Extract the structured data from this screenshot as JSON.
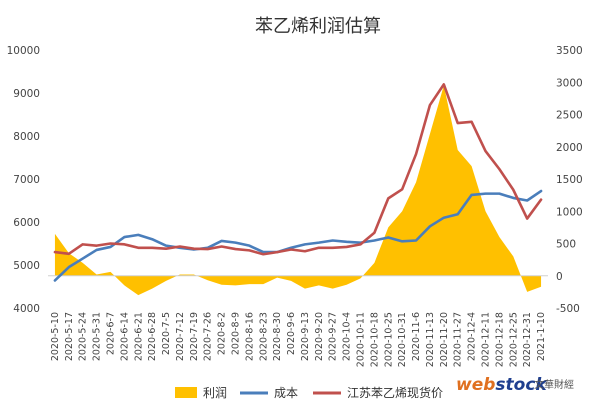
{
  "chart_data": {
    "type": "line",
    "title": "苯乙烯利润估算",
    "x": [
      "2020-5-10",
      "2020-5-17",
      "2020-5-24",
      "2020-5-31",
      "2020-6-7",
      "2020-6-14",
      "2020-6-21",
      "2020-6-28",
      "2020-7-5",
      "2020-7-12",
      "2020-7-19",
      "2020-7-26",
      "2020-8-2",
      "2020-8-9",
      "2020-8-16",
      "2020-8-23",
      "2020-8-30",
      "2020-9-6",
      "2020-9-13",
      "2020-9-20",
      "2020-9-27",
      "2020-10-4",
      "2020-10-11",
      "2020-10-18",
      "2020-10-25",
      "2020-10-31",
      "2020-11-6",
      "2020-11-13",
      "2020-11-20",
      "2020-11-27",
      "2020-12-4",
      "2020-12-11",
      "2020-12-18",
      "2020-12-25",
      "2020-12-31",
      "2021-1-10"
    ],
    "y_left_ticks": [
      "4000",
      "5000",
      "6000",
      "7000",
      "8000",
      "9000",
      "10000"
    ],
    "y_right_ticks": [
      "-500",
      "0",
      "500",
      "1000",
      "1500",
      "2000",
      "2500",
      "3000",
      "3500"
    ],
    "ylim_left": [
      4000,
      10000
    ],
    "ylim_right": [
      -500,
      3500
    ],
    "grid": false,
    "legend_position": "bottom",
    "series": [
      {
        "name": "利润",
        "chart_type": "area",
        "axis": "right",
        "color": "#FFC000",
        "values": [
          650,
          350,
          200,
          20,
          60,
          -150,
          -300,
          -200,
          -80,
          20,
          20,
          -70,
          -140,
          -150,
          -130,
          -130,
          -30,
          -80,
          -200,
          -150,
          -200,
          -140,
          -40,
          200,
          750,
          1000,
          1450,
          2200,
          2950,
          1950,
          1700,
          1000,
          600,
          300,
          -250,
          -170
        ]
      },
      {
        "name": "成本",
        "chart_type": "line",
        "axis": "left",
        "color": "#4A7EBB",
        "values": [
          4640,
          4950,
          5150,
          5350,
          5420,
          5650,
          5700,
          5600,
          5450,
          5400,
          5360,
          5400,
          5560,
          5520,
          5450,
          5300,
          5300,
          5400,
          5480,
          5520,
          5570,
          5540,
          5520,
          5570,
          5640,
          5550,
          5570,
          5900,
          6100,
          6180,
          6630,
          6660,
          6660,
          6560,
          6500,
          6720
        ]
      },
      {
        "name": "江苏苯乙烯现货价",
        "chart_type": "line",
        "axis": "left",
        "color": "#C0504D",
        "values": [
          5300,
          5260,
          5480,
          5450,
          5500,
          5480,
          5400,
          5400,
          5380,
          5430,
          5380,
          5370,
          5430,
          5370,
          5340,
          5250,
          5300,
          5360,
          5320,
          5400,
          5400,
          5420,
          5480,
          5750,
          6550,
          6760,
          7580,
          8720,
          9200,
          8300,
          8330,
          7650,
          7230,
          6750,
          6080,
          6520
        ]
      }
    ]
  },
  "legend": {
    "items": [
      {
        "label": "利润",
        "color": "#FFC000",
        "kind": "area"
      },
      {
        "label": "成本",
        "color": "#4A7EBB",
        "kind": "line"
      },
      {
        "label": "江苏苯乙烯现货价",
        "color": "#C0504D",
        "kind": "line"
      }
    ]
  },
  "watermark": {
    "brand": "webstock",
    "cn": "文華財經"
  }
}
